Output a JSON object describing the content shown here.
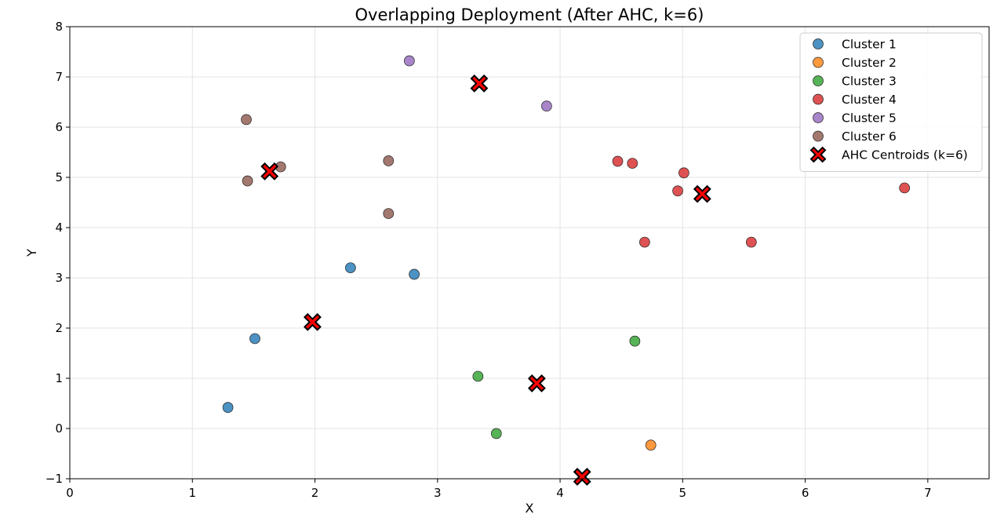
{
  "chart_data": {
    "type": "scatter",
    "title": "Overlapping Deployment (After AHC, k=6)",
    "xlabel": "X",
    "ylabel": "Y",
    "xlim": [
      0,
      7.5
    ],
    "ylim": [
      -1,
      8
    ],
    "xticks": [
      0,
      1,
      2,
      3,
      4,
      5,
      6,
      7
    ],
    "yticks": [
      -1,
      0,
      1,
      2,
      3,
      4,
      5,
      6,
      7,
      8
    ],
    "grid": true,
    "legend_position": "top-right",
    "series": [
      {
        "name": "Cluster 1",
        "color": "#1f77b4",
        "points": [
          [
            1.29,
            0.42
          ],
          [
            1.51,
            1.79
          ],
          [
            2.29,
            3.2
          ],
          [
            2.81,
            3.07
          ]
        ]
      },
      {
        "name": "Cluster 2",
        "color": "#ff7f0e",
        "points": [
          [
            4.74,
            -0.33
          ]
        ]
      },
      {
        "name": "Cluster 3",
        "color": "#2ca02c",
        "points": [
          [
            3.33,
            1.04
          ],
          [
            3.48,
            -0.1
          ],
          [
            4.61,
            1.74
          ]
        ]
      },
      {
        "name": "Cluster 4",
        "color": "#d62728",
        "points": [
          [
            4.47,
            5.32
          ],
          [
            4.59,
            5.28
          ],
          [
            4.69,
            3.71
          ],
          [
            4.96,
            4.73
          ],
          [
            5.01,
            5.09
          ],
          [
            5.56,
            3.71
          ],
          [
            6.81,
            4.79
          ]
        ]
      },
      {
        "name": "Cluster 5",
        "color": "#9467bd",
        "points": [
          [
            2.77,
            7.32
          ],
          [
            3.89,
            6.42
          ]
        ]
      },
      {
        "name": "Cluster 6",
        "color": "#8c564b",
        "points": [
          [
            1.44,
            6.15
          ],
          [
            1.45,
            4.93
          ],
          [
            1.72,
            5.21
          ],
          [
            2.6,
            5.33
          ],
          [
            2.6,
            4.28
          ]
        ]
      }
    ],
    "centroids": {
      "name": "AHC Centroids (k=6)",
      "color": "#ff0000",
      "points": [
        [
          3.34,
          6.87
        ],
        [
          1.63,
          5.12
        ],
        [
          5.16,
          4.67
        ],
        [
          1.98,
          2.12
        ],
        [
          3.81,
          0.9
        ],
        [
          4.18,
          -0.96
        ]
      ]
    }
  }
}
